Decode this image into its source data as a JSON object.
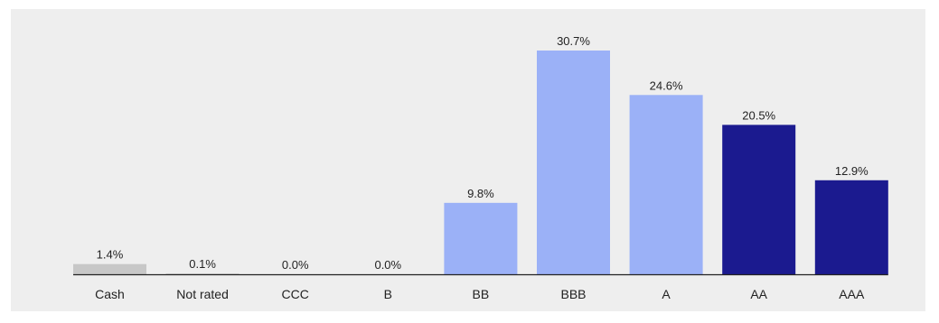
{
  "chart_data": {
    "type": "bar",
    "title": "",
    "xlabel": "",
    "ylabel": "",
    "categories": [
      "Cash",
      "Not rated",
      "CCC",
      "B",
      "BB",
      "BBB",
      "A",
      "AA",
      "AAA"
    ],
    "values": [
      1.4,
      0.1,
      0.0,
      0.0,
      9.8,
      30.7,
      24.6,
      20.5,
      12.9
    ],
    "value_labels": [
      "1.4%",
      "0.1%",
      "0.0%",
      "0.0%",
      "9.8%",
      "30.7%",
      "24.6%",
      "20.5%",
      "12.9%"
    ],
    "bar_colors": [
      "#c7c7c7",
      "#c7c7c7",
      "#c7c7c7",
      "#c7c7c7",
      "#9bb1f7",
      "#9bb1f7",
      "#9bb1f7",
      "#1b1a8f",
      "#1b1a8f"
    ],
    "ylim": [
      0,
      30.7
    ],
    "grid": false,
    "legend": "none"
  },
  "colors": {
    "background": "#eeeeee",
    "baseline": "#222222",
    "text": "#222222"
  }
}
